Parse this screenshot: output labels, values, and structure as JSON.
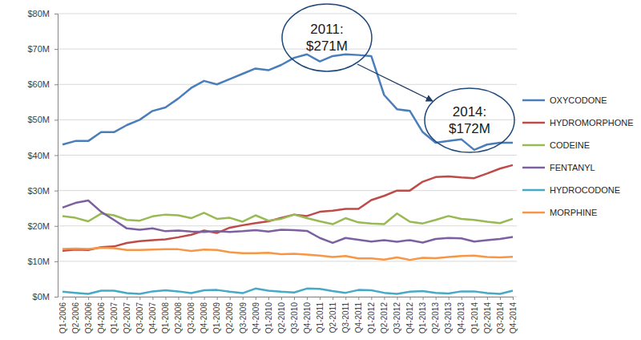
{
  "chart_data": {
    "type": "line",
    "categories": [
      "Q1-2006",
      "Q2-2006",
      "Q3-2006",
      "Q4-2006",
      "Q1-2007",
      "Q2-2007",
      "Q3-2007",
      "Q4-2007",
      "Q1-2008",
      "Q2-2008",
      "Q3-2008",
      "Q4-2008",
      "Q1-2009",
      "Q2-2009",
      "Q3-2009",
      "Q4-2009",
      "Q1-2010",
      "Q2-2010",
      "Q3-2010",
      "Q4-2010",
      "Q1-2011",
      "Q2-2011",
      "Q3-2011",
      "Q4-2011",
      "Q1-2012",
      "Q2-2012",
      "Q3-2012",
      "Q4-2012",
      "Q1-2013",
      "Q2-2013",
      "Q3-2013",
      "Q4-2013",
      "Q1-2014",
      "Q2-2014",
      "Q3-2014",
      "Q4-2014"
    ],
    "series": [
      {
        "name": "OXYCODONE",
        "color": "#4a7ebb",
        "values": [
          43,
          44,
          44,
          46.5,
          46.5,
          48.5,
          50,
          52.5,
          53.5,
          56,
          59,
          61,
          60,
          61.5,
          63,
          64.5,
          64,
          65.5,
          67.5,
          68.5,
          66.5,
          68,
          68.5,
          68.3,
          68,
          57,
          53,
          52.5,
          46.5,
          43.5,
          44,
          44.5,
          41.5,
          43,
          43.5,
          43.5
        ]
      },
      {
        "name": "HYDROMORPHONE",
        "color": "#be4b48",
        "values": [
          13,
          13.3,
          13.2,
          14,
          14.2,
          15.2,
          15.7,
          16,
          16.2,
          16.8,
          17.5,
          18.7,
          18,
          19.5,
          20.2,
          20.8,
          21.3,
          22.3,
          23.2,
          22.8,
          24,
          24.3,
          24.8,
          24.8,
          27.3,
          28.5,
          30,
          30,
          32.5,
          33.8,
          34,
          33.7,
          33.5,
          34.8,
          36.2,
          37.2
        ]
      },
      {
        "name": "CODEINE",
        "color": "#98b954",
        "values": [
          22.8,
          22.3,
          21.3,
          23.5,
          23,
          21.7,
          21.5,
          22.7,
          23.2,
          23,
          22.2,
          23.7,
          22,
          22.3,
          21.2,
          23,
          21.5,
          22,
          23.2,
          22.2,
          21.3,
          20.5,
          22.2,
          21,
          20.7,
          20.5,
          23.5,
          21.2,
          20.7,
          21.7,
          22.8,
          22,
          21.7,
          21.2,
          20.8,
          22
        ]
      },
      {
        "name": "FENTANYL",
        "color": "#7d60a0",
        "values": [
          25.2,
          26.5,
          27.2,
          24,
          21.7,
          19.3,
          18.9,
          19.3,
          18.5,
          18.7,
          18.4,
          18.3,
          18.5,
          18.3,
          18.5,
          18.8,
          18.4,
          18.9,
          18.8,
          18.6,
          16.6,
          15.2,
          16.6,
          16.1,
          15.6,
          16,
          15.5,
          16,
          15.3,
          16.3,
          16.6,
          16.5,
          15.6,
          16,
          16.3,
          16.9
        ]
      },
      {
        "name": "HYDROCODONE",
        "color": "#46aac5",
        "values": [
          1.4,
          1.1,
          0.8,
          1.7,
          1.7,
          1,
          0.8,
          1.5,
          1.8,
          1.5,
          1,
          1.8,
          1.9,
          1.4,
          1,
          2.3,
          1.7,
          1.4,
          1.2,
          2.3,
          2.2,
          1.6,
          1.1,
          1.9,
          1.8,
          1.1,
          0.8,
          1.4,
          1.6,
          1.1,
          0.9,
          1.5,
          1.5,
          1,
          0.8,
          1.7
        ]
      },
      {
        "name": "MORPHINE",
        "color": "#f79646",
        "values": [
          13.5,
          13.6,
          13.5,
          13.8,
          13.7,
          13.2,
          13.2,
          13.3,
          13.4,
          13.4,
          12.9,
          13.3,
          13.2,
          12.6,
          12.3,
          12.3,
          12.4,
          12,
          12.1,
          11.9,
          11.6,
          11.2,
          11.5,
          10.8,
          10.8,
          10.5,
          11.1,
          10.4,
          11,
          10.9,
          11.2,
          11.5,
          11.6,
          11.2,
          11.1,
          11.3
        ]
      }
    ],
    "ylim": [
      0,
      80
    ],
    "yticks": [
      {
        "value": 0,
        "label": "$0M"
      },
      {
        "value": 10,
        "label": "$10M"
      },
      {
        "value": 20,
        "label": "$20M"
      },
      {
        "value": 30,
        "label": "$30M"
      },
      {
        "value": 40,
        "label": "$40M"
      },
      {
        "value": 50,
        "label": "$50M"
      },
      {
        "value": 60,
        "label": "$60M"
      },
      {
        "value": 70,
        "label": "$70M"
      },
      {
        "value": 80,
        "label": "$80M"
      }
    ],
    "grid": true,
    "legend": "right",
    "annotations": [
      [
        "2011:",
        "$271M"
      ],
      [
        "2014:",
        "$172M"
      ]
    ]
  }
}
